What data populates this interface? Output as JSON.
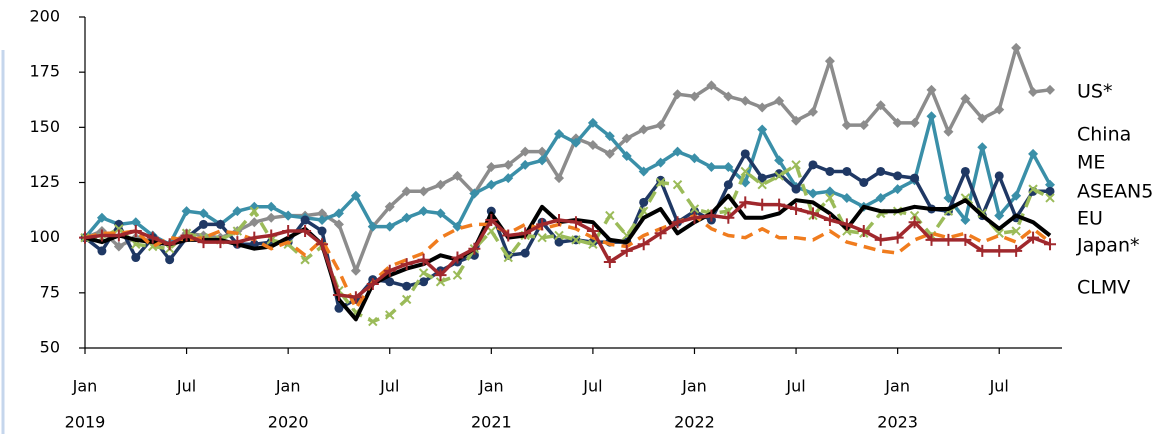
{
  "chart_data": {
    "type": "line",
    "x": [
      "2019-01",
      "2019-02",
      "2019-03",
      "2019-04",
      "2019-05",
      "2019-06",
      "2019-07",
      "2019-08",
      "2019-09",
      "2019-10",
      "2019-11",
      "2019-12",
      "2020-01",
      "2020-02",
      "2020-03",
      "2020-04",
      "2020-05",
      "2020-06",
      "2020-07",
      "2020-08",
      "2020-09",
      "2020-10",
      "2020-11",
      "2020-12",
      "2021-01",
      "2021-02",
      "2021-03",
      "2021-04",
      "2021-05",
      "2021-06",
      "2021-07",
      "2021-08",
      "2021-09",
      "2021-10",
      "2021-11",
      "2021-12",
      "2022-01",
      "2022-02",
      "2022-03",
      "2022-04",
      "2022-05",
      "2022-06",
      "2022-07",
      "2022-08",
      "2022-09",
      "2022-10",
      "2022-11",
      "2022-12",
      "2023-01",
      "2023-02",
      "2023-03",
      "2023-04",
      "2023-05",
      "2023-06",
      "2023-07",
      "2023-08",
      "2023-09",
      "2023-10"
    ],
    "xticks": [
      {
        "value": "2019-01",
        "label": "Jan"
      },
      {
        "value": "2019-07",
        "label": "Jul"
      },
      {
        "value": "2020-01",
        "label": "Jan"
      },
      {
        "value": "2020-07",
        "label": "Jul"
      },
      {
        "value": "2021-01",
        "label": "Jan"
      },
      {
        "value": "2021-07",
        "label": "Jul"
      },
      {
        "value": "2022-01",
        "label": "Jan"
      },
      {
        "value": "2022-07",
        "label": "Jul"
      },
      {
        "value": "2023-01",
        "label": "Jan"
      },
      {
        "value": "2023-07",
        "label": "Jul"
      }
    ],
    "xtick_years": [
      {
        "value": "2019-01",
        "label": "2019"
      },
      {
        "value": "2020-01",
        "label": "2020"
      },
      {
        "value": "2021-01",
        "label": "2021"
      },
      {
        "value": "2022-01",
        "label": "2022"
      },
      {
        "value": "2023-01",
        "label": "2023"
      }
    ],
    "ylim": [
      50,
      200
    ],
    "yticks": [
      50,
      75,
      100,
      125,
      150,
      175,
      200
    ],
    "series": [
      {
        "name": "US*",
        "color": "#8c8c8c",
        "marker": "diamond",
        "values": [
          100,
          103,
          96,
          100,
          98,
          97,
          102,
          101,
          100,
          103,
          107,
          109,
          110,
          110,
          111,
          106,
          85,
          105,
          114,
          121,
          121,
          124,
          128,
          120,
          132,
          133,
          139,
          139,
          127,
          145,
          142,
          138,
          145,
          149,
          151,
          165,
          164,
          169,
          164,
          162,
          159,
          162,
          153,
          157,
          180,
          151,
          151,
          160,
          152,
          152,
          167,
          148,
          163,
          154,
          158,
          186,
          166,
          167
        ]
      },
      {
        "name": "China",
        "color": "#3a8fa8",
        "marker": "diamond",
        "values": [
          100,
          109,
          106,
          107,
          101,
          97,
          112,
          111,
          106,
          112,
          114,
          114,
          110,
          109,
          108,
          111,
          119,
          105,
          105,
          109,
          112,
          111,
          105,
          120,
          124,
          127,
          133,
          135,
          147,
          143,
          152,
          146,
          137,
          130,
          134,
          139,
          136,
          132,
          132,
          125,
          149,
          135,
          123,
          120,
          121,
          118,
          114,
          118,
          122,
          126,
          155,
          118,
          108,
          141,
          110,
          119,
          138,
          124
        ]
      },
      {
        "name": "ME",
        "color": "#1f3864",
        "marker": "circle",
        "values": [
          100,
          94,
          106,
          91,
          100,
          90,
          100,
          106,
          106,
          97,
          97,
          98,
          98,
          108,
          103,
          68,
          72,
          81,
          80,
          78,
          80,
          85,
          89,
          92,
          112,
          92,
          93,
          107,
          98,
          99,
          98,
          98,
          98,
          116,
          126,
          107,
          112,
          108,
          124,
          138,
          127,
          129,
          122,
          133,
          130,
          130,
          125,
          130,
          128,
          127,
          113,
          112,
          130,
          110,
          128,
          109,
          121,
          121
        ]
      },
      {
        "name": "ASEAN5",
        "color": "#9bbb59",
        "marker": "x",
        "dashed": true,
        "values": [
          100,
          100,
          104,
          97,
          96,
          95,
          102,
          100,
          99,
          103,
          112,
          99,
          97,
          90,
          96,
          76,
          66,
          62,
          65,
          72,
          84,
          80,
          83,
          95,
          103,
          91,
          101,
          100,
          101,
          99,
          97,
          110,
          101,
          112,
          125,
          124,
          113,
          111,
          112,
          130,
          124,
          128,
          133,
          110,
          118,
          103,
          102,
          111,
          112,
          110,
          101,
          112,
          118,
          111,
          102,
          103,
          122,
          118
        ]
      },
      {
        "name": "EU",
        "color": "#000000",
        "marker": "none",
        "values": [
          100,
          98,
          101,
          99,
          98,
          97,
          99,
          99,
          99,
          97,
          95,
          96,
          100,
          104,
          97,
          72,
          63,
          79,
          83,
          86,
          88,
          92,
          90,
          95,
          111,
          100,
          101,
          114,
          107,
          108,
          107,
          99,
          98,
          109,
          113,
          102,
          107,
          111,
          119,
          109,
          109,
          111,
          117,
          116,
          111,
          104,
          114,
          112,
          112,
          114,
          113,
          113,
          117,
          110,
          104,
          110,
          107,
          101
        ]
      },
      {
        "name": "Japan*",
        "color": "#f07c1e",
        "marker": "none",
        "dashed": true,
        "values": [
          100,
          102,
          102,
          103,
          96,
          100,
          99,
          100,
          103,
          102,
          99,
          95,
          98,
          92,
          99,
          85,
          68,
          80,
          87,
          90,
          93,
          100,
          104,
          106,
          106,
          102,
          106,
          104,
          106,
          104,
          100,
          97,
          96,
          101,
          104,
          107,
          110,
          104,
          101,
          100,
          104,
          100,
          100,
          99,
          103,
          98,
          96,
          94,
          93,
          99,
          102,
          100,
          102,
          98,
          101,
          98,
          104,
          98
        ]
      },
      {
        "name": "CLMV",
        "color": "#a0282d",
        "marker": "plus",
        "values": [
          100,
          101,
          101,
          103,
          100,
          97,
          101,
          98,
          98,
          98,
          100,
          101,
          103,
          103,
          97,
          74,
          73,
          79,
          85,
          88,
          90,
          83,
          91,
          95,
          108,
          101,
          102,
          106,
          108,
          107,
          103,
          89,
          94,
          97,
          102,
          107,
          109,
          110,
          109,
          116,
          115,
          115,
          113,
          111,
          108,
          106,
          103,
          99,
          100,
          107,
          99,
          99,
          99,
          94,
          94,
          94,
          100,
          97
        ]
      }
    ]
  }
}
